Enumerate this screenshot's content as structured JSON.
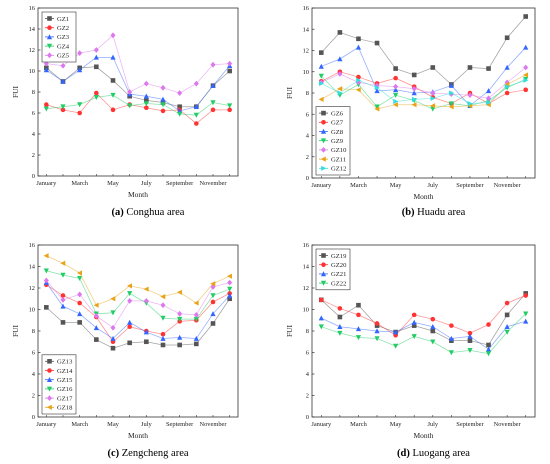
{
  "chart_data": [
    {
      "type": "line",
      "caption_letter": "(a)",
      "caption_text": "Conghua area",
      "xlabel": "Month",
      "ylabel": "FUI",
      "x": [
        1,
        2,
        3,
        4,
        5,
        6,
        7,
        8,
        9,
        10,
        11,
        12
      ],
      "xticks": [
        1,
        3,
        5,
        7,
        9,
        11
      ],
      "xtick_labels": [
        "January",
        "March",
        "May",
        "July",
        "September",
        "November"
      ],
      "ylim": [
        0,
        16
      ],
      "yticks": [
        0,
        2,
        4,
        6,
        8,
        10,
        12,
        14,
        16
      ],
      "legend_position": "top-left",
      "series": [
        {
          "name": "GZ1",
          "values": [
            10.3,
            9.0,
            10.3,
            10.4,
            9.1,
            7.6,
            7.2,
            7.0,
            6.6,
            6.6,
            8.6,
            10.0
          ]
        },
        {
          "name": "GZ2",
          "values": [
            6.8,
            6.3,
            6.0,
            7.9,
            6.3,
            6.8,
            6.5,
            6.2,
            6.3,
            5.0,
            6.3,
            6.3
          ]
        },
        {
          "name": "GZ3",
          "values": [
            10.1,
            9.0,
            10.1,
            11.3,
            11.3,
            7.8,
            7.6,
            7.3,
            6.2,
            6.6,
            8.6,
            10.5
          ]
        },
        {
          "name": "GZ4",
          "values": [
            6.4,
            6.6,
            6.8,
            7.5,
            7.7,
            6.7,
            6.9,
            6.8,
            5.9,
            5.8,
            7.0,
            6.7
          ]
        },
        {
          "name": "GZ5",
          "values": [
            10.7,
            10.5,
            11.7,
            12.0,
            13.4,
            8.0,
            8.8,
            8.4,
            7.9,
            8.8,
            10.6,
            10.7
          ]
        }
      ]
    },
    {
      "type": "line",
      "caption_letter": "(b)",
      "caption_text": "Huadu area",
      "xlabel": "Month",
      "ylabel": "FUI",
      "x": [
        1,
        2,
        3,
        4,
        5,
        6,
        7,
        8,
        9,
        10,
        11,
        12
      ],
      "xticks": [
        1,
        3,
        5,
        7,
        9,
        11
      ],
      "xtick_labels": [
        "January",
        "March",
        "May",
        "July",
        "September",
        "November"
      ],
      "ylim": [
        0,
        16
      ],
      "yticks": [
        0,
        2,
        4,
        6,
        8,
        10,
        12,
        14,
        16
      ],
      "legend_position": "bottom-left",
      "series": [
        {
          "name": "GZ6",
          "values": [
            11.8,
            13.7,
            13.1,
            12.7,
            10.3,
            9.7,
            10.4,
            8.8,
            10.4,
            10.3,
            13.2,
            15.2
          ]
        },
        {
          "name": "GZ7",
          "values": [
            9.1,
            10.0,
            9.5,
            8.9,
            9.4,
            8.6,
            7.6,
            7.0,
            8.0,
            7.0,
            8.0,
            8.3
          ]
        },
        {
          "name": "GZ8",
          "values": [
            10.5,
            11.2,
            12.3,
            8.2,
            8.3,
            8.0,
            8.1,
            8.7,
            6.8,
            8.2,
            10.4,
            12.3
          ]
        },
        {
          "name": "GZ9",
          "values": [
            9.6,
            7.8,
            8.8,
            6.7,
            7.8,
            7.3,
            6.5,
            7.0,
            6.8,
            7.3,
            8.5,
            9.3
          ]
        },
        {
          "name": "GZ10",
          "values": [
            9.0,
            9.8,
            9.0,
            8.7,
            8.6,
            8.4,
            8.0,
            7.9,
            7.8,
            7.5,
            9.0,
            10.4
          ]
        },
        {
          "name": "GZ11",
          "values": [
            7.4,
            8.4,
            8.3,
            6.5,
            6.9,
            6.9,
            6.8,
            6.7,
            6.8,
            6.9,
            8.8,
            9.7
          ]
        },
        {
          "name": "GZ12",
          "values": [
            8.9,
            8.0,
            9.2,
            8.5,
            7.2,
            7.4,
            7.5,
            8.0,
            7.0,
            7.1,
            8.6,
            9.2
          ]
        }
      ]
    },
    {
      "type": "line",
      "caption_letter": "(c)",
      "caption_text": "Zengcheng area",
      "xlabel": "Month",
      "ylabel": "FUI",
      "x": [
        1,
        2,
        3,
        4,
        5,
        6,
        7,
        8,
        9,
        10,
        11,
        12
      ],
      "xticks": [
        1,
        3,
        5,
        7,
        9,
        11
      ],
      "xtick_labels": [
        "January",
        "March",
        "May",
        "July",
        "September",
        "November"
      ],
      "ylim": [
        0,
        16
      ],
      "yticks": [
        0,
        2,
        4,
        6,
        8,
        10,
        12,
        14,
        16
      ],
      "legend_position": "bottom-left",
      "series": [
        {
          "name": "GZ13",
          "values": [
            10.2,
            8.8,
            8.8,
            7.2,
            6.4,
            6.9,
            7.0,
            6.7,
            6.7,
            6.8,
            8.7,
            11.0
          ]
        },
        {
          "name": "GZ14",
          "values": [
            12.3,
            11.3,
            10.6,
            9.3,
            7.0,
            8.4,
            8.0,
            7.7,
            8.9,
            9.0,
            10.7,
            11.5
          ]
        },
        {
          "name": "GZ15",
          "values": [
            12.5,
            10.3,
            9.6,
            8.3,
            7.3,
            8.8,
            7.9,
            7.3,
            7.4,
            7.3,
            9.6,
            11.3
          ]
        },
        {
          "name": "GZ16",
          "values": [
            13.6,
            13.2,
            12.9,
            9.6,
            9.7,
            11.5,
            10.6,
            9.2,
            9.1,
            9.1,
            11.3,
            11.9
          ]
        },
        {
          "name": "GZ17",
          "values": [
            12.7,
            10.9,
            11.4,
            9.4,
            8.3,
            10.8,
            10.8,
            10.4,
            9.6,
            9.5,
            12.1,
            12.5
          ]
        },
        {
          "name": "GZ18",
          "values": [
            15.0,
            14.3,
            13.4,
            10.4,
            11.0,
            12.2,
            11.9,
            11.2,
            11.6,
            10.6,
            12.4,
            13.1
          ]
        }
      ]
    },
    {
      "type": "line",
      "caption_letter": "(d)",
      "caption_text": "Luogang area",
      "xlabel": "Month",
      "ylabel": "FUI",
      "x": [
        1,
        2,
        3,
        4,
        5,
        6,
        7,
        8,
        9,
        10,
        11,
        12
      ],
      "xticks": [
        1,
        3,
        5,
        7,
        9,
        11
      ],
      "xtick_labels": [
        "January",
        "March",
        "May",
        "July",
        "September",
        "November"
      ],
      "ylim": [
        0,
        16
      ],
      "yticks": [
        0,
        2,
        4,
        6,
        8,
        10,
        12,
        14,
        16
      ],
      "legend_position": "top-left",
      "series": [
        {
          "name": "GZ19",
          "values": [
            10.9,
            9.3,
            10.4,
            8.5,
            7.9,
            8.5,
            8.0,
            7.1,
            7.1,
            6.7,
            9.5,
            11.5
          ]
        },
        {
          "name": "GZ20",
          "values": [
            10.9,
            10.1,
            9.5,
            8.7,
            7.6,
            9.5,
            9.1,
            8.5,
            7.8,
            8.6,
            10.6,
            11.3
          ]
        },
        {
          "name": "GZ21",
          "values": [
            9.2,
            8.4,
            8.2,
            8.0,
            7.9,
            8.8,
            8.4,
            7.3,
            7.5,
            6.3,
            8.4,
            8.9
          ]
        },
        {
          "name": "GZ22",
          "values": [
            8.4,
            7.8,
            7.4,
            7.3,
            6.6,
            7.5,
            7.0,
            6.0,
            6.2,
            5.9,
            7.9,
            9.6
          ]
        }
      ]
    }
  ],
  "palette": [
    "#555555",
    "#ff3333",
    "#3366ff",
    "#22cc66",
    "#dd77ee",
    "#e8a317",
    "#33dddd"
  ]
}
